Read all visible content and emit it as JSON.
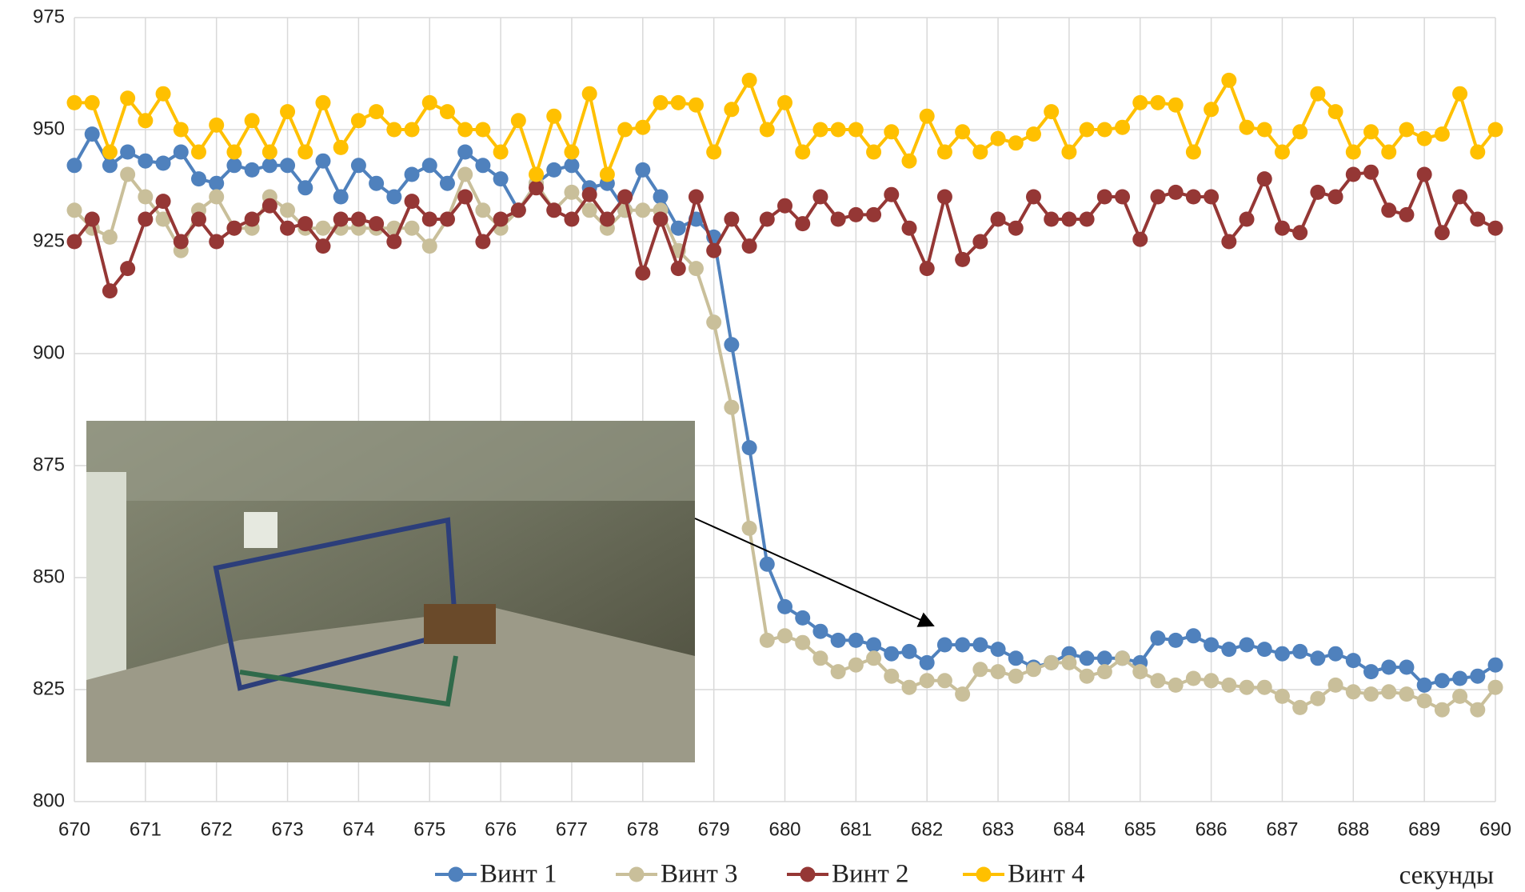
{
  "chart_data": {
    "type": "line",
    "x_label": "секунды",
    "x": [
      670,
      670.25,
      670.5,
      670.75,
      671,
      671.25,
      671.5,
      671.75,
      672,
      672.25,
      672.5,
      672.75,
      673,
      673.25,
      673.5,
      673.75,
      674,
      674.25,
      674.5,
      674.75,
      675,
      675.25,
      675.5,
      675.75,
      676,
      676.25,
      676.5,
      676.75,
      677,
      677.25,
      677.5,
      677.75,
      678,
      678.25,
      678.5,
      678.75,
      679,
      679.25,
      679.5,
      679.75,
      680,
      680.25,
      680.5,
      680.75,
      681,
      681.25,
      681.5,
      681.75,
      682,
      682.25,
      682.5,
      682.75,
      683,
      683.25,
      683.5,
      683.75,
      684,
      684.25,
      684.5,
      684.75,
      685,
      685.25,
      685.5,
      685.75,
      686,
      686.25,
      686.5,
      686.75,
      687,
      687.25,
      687.5,
      687.75,
      688,
      688.25,
      688.5,
      688.75,
      689,
      689.25,
      689.5,
      689.75,
      690
    ],
    "series": [
      {
        "name": "Винт 1",
        "color": "#4f81bd",
        "values": [
          942,
          949,
          942,
          945,
          943,
          942.5,
          945,
          939,
          938,
          942,
          941,
          942,
          942,
          937,
          943,
          935,
          942,
          938,
          935,
          940,
          942,
          938,
          945,
          942,
          939,
          932,
          938,
          941,
          942,
          937,
          938,
          932,
          941,
          935,
          928,
          930,
          926,
          902,
          879,
          853,
          843.5,
          841,
          838,
          836,
          836,
          835,
          833,
          833.5,
          831,
          835,
          835,
          835,
          834,
          832,
          830,
          831,
          833,
          832,
          832,
          832,
          831,
          836.5,
          836,
          837,
          835,
          834,
          835,
          834,
          833,
          833.5,
          832,
          833,
          831.5,
          829,
          830,
          830,
          826,
          827,
          827.5,
          828,
          830.5
        ]
      },
      {
        "name": "Винт 3",
        "color": "#c9bf9a",
        "values": [
          932,
          928,
          926,
          940,
          935,
          930,
          923,
          932,
          935,
          928,
          928,
          935,
          932,
          928,
          928,
          928,
          928,
          928,
          928,
          928,
          924,
          930,
          940,
          932,
          928,
          932,
          938,
          932,
          936,
          932,
          928,
          932,
          932,
          932,
          923,
          919,
          907,
          888,
          861,
          836,
          837,
          835.5,
          832,
          829,
          830.5,
          832,
          828,
          825.5,
          827,
          827,
          824,
          829.5,
          829,
          828,
          829.5,
          831,
          831,
          828,
          829,
          832,
          829,
          827,
          826,
          827.5,
          827,
          826,
          825.5,
          825.5,
          823.5,
          821,
          823,
          826,
          824.5,
          824,
          824.5,
          824,
          822.5,
          820.5,
          823.5,
          820.5,
          825.5
        ]
      },
      {
        "name": "Винт 2",
        "color": "#953735",
        "values": [
          925,
          930,
          914,
          919,
          930,
          934,
          925,
          930,
          925,
          928,
          930,
          933,
          928,
          929,
          924,
          930,
          930,
          929,
          925,
          934,
          930,
          930,
          935,
          925,
          930,
          932,
          937,
          932,
          930,
          935.5,
          930,
          935,
          918,
          930,
          919,
          935,
          923,
          930,
          924,
          930,
          933,
          929,
          935,
          930,
          931,
          931,
          935.5,
          928,
          919,
          935,
          921,
          925,
          930,
          928,
          935,
          930,
          930,
          930,
          935,
          935,
          925.5,
          935,
          936,
          935,
          935,
          925,
          930,
          939,
          928,
          927,
          936,
          935,
          940,
          940.5,
          932,
          931,
          940,
          927,
          935,
          930,
          928
        ]
      },
      {
        "name": "Винт 4",
        "color": "#ffc000",
        "values": [
          956,
          956,
          945,
          957,
          952,
          958,
          950,
          945,
          951,
          945,
          952,
          945,
          954,
          945,
          956,
          946,
          952,
          954,
          950,
          950,
          956,
          954,
          950,
          950,
          945,
          952,
          940,
          953,
          945,
          958,
          940,
          950,
          950.5,
          956,
          956,
          955.5,
          945,
          954.5,
          961,
          950,
          956,
          945,
          950,
          950,
          950,
          945,
          949.5,
          943,
          953,
          945,
          949.5,
          945,
          948,
          947,
          949,
          954,
          945,
          950,
          950,
          950.5,
          956,
          956,
          955.5,
          945,
          954.5,
          961,
          950.5,
          950,
          945,
          949.5,
          958,
          954,
          945,
          949.5,
          945,
          950,
          948,
          949,
          958,
          945,
          950
        ]
      }
    ],
    "xlim": [
      670,
      690
    ],
    "xticks": [
      670,
      671,
      672,
      673,
      674,
      675,
      676,
      677,
      678,
      679,
      680,
      681,
      682,
      683,
      684,
      685,
      686,
      687,
      688,
      689,
      690
    ],
    "ylim": [
      800,
      975
    ],
    "yticks": [
      800,
      825,
      850,
      875,
      900,
      925,
      950,
      975
    ],
    "grid": true,
    "legend": "bottom"
  }
}
